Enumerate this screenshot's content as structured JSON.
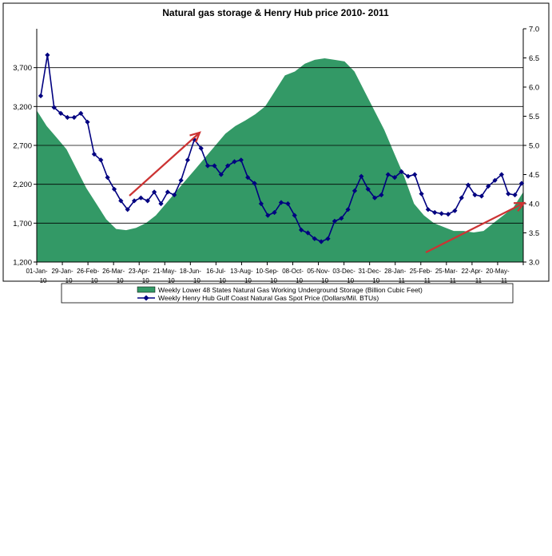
{
  "chart_data": {
    "type": "area+line",
    "title": "Natural gas storage & Henry Hub price 2010- 2011",
    "left_axis": {
      "ylim": [
        1200,
        4200
      ],
      "ticks": [
        1200,
        1700,
        2200,
        2700,
        3200,
        3700
      ],
      "tick_labels": [
        "1,200",
        "1,700",
        "2,200",
        "2,700",
        "3,200",
        "3,700"
      ]
    },
    "right_axis": {
      "ylim": [
        3.0,
        7.0
      ],
      "ticks": [
        3.0,
        3.5,
        4.0,
        4.5,
        5.0,
        5.5,
        6.0,
        6.5,
        7.0
      ],
      "tick_labels": [
        "3.0",
        "3.5",
        "4.0",
        "4.5",
        "5.0",
        "5.5",
        "6.0",
        "6.5",
        "7.0"
      ]
    },
    "x_tick_labels": [
      [
        "01-Jan-",
        "10"
      ],
      [
        "29-Jan-",
        "10"
      ],
      [
        "26-Feb-",
        "10"
      ],
      [
        "26-Mar-",
        "10"
      ],
      [
        "23-Apr-",
        "10"
      ],
      [
        "21-May-",
        "10"
      ],
      [
        "18-Jun-",
        "10"
      ],
      [
        "16-Jul-",
        "10"
      ],
      [
        "13-Aug-",
        "10"
      ],
      [
        "10-Sep-",
        "10"
      ],
      [
        "08-Oct-",
        "10"
      ],
      [
        "05-Nov-",
        "10"
      ],
      [
        "03-Dec-",
        "10"
      ],
      [
        "31-Dec-",
        "10"
      ],
      [
        "28-Jan-",
        "11"
      ],
      [
        "25-Feb-",
        "11"
      ],
      [
        "25-Mar-",
        "11"
      ],
      [
        "22-Apr-",
        "11"
      ],
      [
        "20-May-",
        "11"
      ]
    ],
    "grid": true,
    "legend_placement": "bottom",
    "colors": {
      "storage_fill": "#339966",
      "price_line": "#000080",
      "arrow": "#cc3333",
      "grid": "#000000"
    },
    "series": [
      {
        "name": "Weekly Lower 48 States Natural Gas Working Underground Storage  (Billion Cubic Feet)",
        "axis": "left",
        "kind": "area",
        "values": [
          3150,
          2950,
          2800,
          2650,
          2400,
          2150,
          1950,
          1750,
          1625,
          1610,
          1640,
          1700,
          1800,
          1950,
          2100,
          2250,
          2400,
          2550,
          2700,
          2850,
          2950,
          3020,
          3100,
          3200,
          3400,
          3600,
          3650,
          3750,
          3800,
          3820,
          3800,
          3780,
          3650,
          3400,
          3150,
          2900,
          2600,
          2300,
          1950,
          1800,
          1700,
          1650,
          1600,
          1600,
          1580,
          1600,
          1700,
          1800,
          1900,
          2100
        ]
      },
      {
        "name": "Weekly Henry Hub Gulf Coast Natural Gas Spot Price (Dollars/Mil. BTUs)",
        "axis": "right",
        "kind": "line",
        "values": [
          5.85,
          6.55,
          5.65,
          5.55,
          5.48,
          5.48,
          5.55,
          5.4,
          4.85,
          4.75,
          4.45,
          4.25,
          4.05,
          3.9,
          4.05,
          4.1,
          4.05,
          4.2,
          4.0,
          4.2,
          4.15,
          4.4,
          4.75,
          5.1,
          4.95,
          4.65,
          4.65,
          4.5,
          4.65,
          4.72,
          4.75,
          4.45,
          4.35,
          4.0,
          3.8,
          3.85,
          4.02,
          4.0,
          3.8,
          3.55,
          3.5,
          3.4,
          3.35,
          3.4,
          3.7,
          3.75,
          3.9,
          4.22,
          4.47,
          4.25,
          4.1,
          4.15,
          4.5,
          4.45,
          4.55,
          4.47,
          4.5,
          4.17,
          3.9,
          3.85,
          3.83,
          3.82,
          3.88,
          4.1,
          4.32,
          4.15,
          4.13,
          4.3,
          4.4,
          4.5,
          4.17,
          4.15,
          4.35
        ]
      }
    ]
  }
}
